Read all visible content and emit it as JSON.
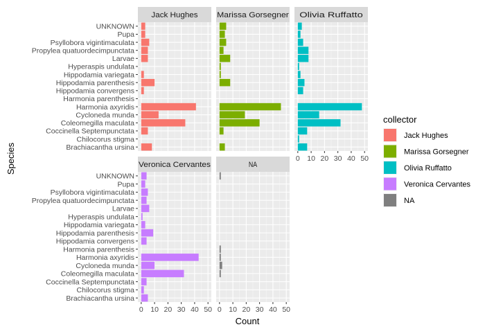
{
  "chart_data": {
    "type": "bar",
    "orientation": "horizontal",
    "layout": "faceted",
    "xlabel": "Count",
    "ylabel": "Species",
    "xlim": [
      0,
      50
    ],
    "x_ticks": [
      0,
      10,
      20,
      30,
      40,
      50
    ],
    "grid": true,
    "legend_title": "collector",
    "legend_position": "right",
    "categories": [
      "UNKNOWN",
      "Pupa",
      "Psyllobora vigintimaculata",
      "Propylea quatuordecimpunctata",
      "Larvae",
      "Hyperaspis undulata",
      "Hippodamia variegata",
      "Hippodamia parenthesis",
      "Hippodamia convergens",
      "Harmonia parenthesis",
      "Harmonia axyridis",
      "Cycloneda munda",
      "Coleomegilla maculata",
      "Coccinella Septempunctata",
      "Chilocorus stigma",
      "Brachiacantha ursina"
    ],
    "series": [
      {
        "name": "Jack Hughes",
        "color": "#F8766D",
        "values": [
          3,
          3,
          6,
          5,
          5,
          0,
          2,
          10,
          2,
          0,
          41,
          13,
          33,
          5,
          0,
          8
        ]
      },
      {
        "name": "Marissa Gorsegner",
        "color": "#7CAE00",
        "values": [
          5,
          4,
          5,
          3,
          8,
          1,
          1,
          8,
          0,
          0,
          46,
          19,
          30,
          3,
          0,
          4
        ]
      },
      {
        "name": "Olivia Ruffatto",
        "color": "#00BFC4",
        "values": [
          3,
          2,
          4,
          8,
          8,
          1,
          2,
          5,
          4,
          0,
          48,
          16,
          32,
          7,
          1,
          7
        ]
      },
      {
        "name": "Veronica Cervantes",
        "color": "#C77CFF",
        "values": [
          4,
          3,
          5,
          4,
          6,
          1,
          3,
          9,
          4,
          0,
          43,
          10,
          32,
          4,
          2,
          5
        ]
      },
      {
        "name": "NA",
        "color": "#7F7F7F",
        "values": [
          1,
          0,
          0,
          0,
          0,
          0,
          0,
          0,
          0,
          1,
          1,
          2,
          1,
          0,
          0,
          0
        ]
      }
    ]
  }
}
